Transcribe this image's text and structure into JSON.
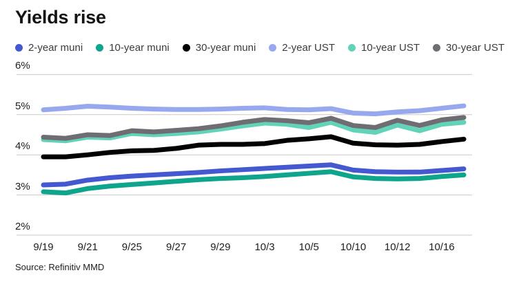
{
  "title": "Yields rise",
  "source": "Source: Refinitiv MMD",
  "chart_data": {
    "type": "line",
    "title": "Yields rise",
    "x": [
      "9/19",
      "9/20",
      "9/21",
      "9/22",
      "9/25",
      "9/26",
      "9/27",
      "9/28",
      "9/29",
      "10/2",
      "10/3",
      "10/4",
      "10/5",
      "10/6",
      "10/10",
      "10/11",
      "10/12",
      "10/13",
      "10/16",
      "10/17"
    ],
    "x_tick_labels": [
      "9/19",
      "9/21",
      "9/25",
      "9/27",
      "9/29",
      "10/3",
      "10/5",
      "10/10",
      "10/12",
      "10/16"
    ],
    "y_ticks": [
      "6%",
      "5%",
      "4%",
      "3%",
      "2%"
    ],
    "ylim": [
      2,
      6
    ],
    "y_unit": "%",
    "grid": "horizontal-only",
    "grid_color": "#c9c9c9",
    "legend_position": "top-left",
    "source": "Source: Refinitiv MMD",
    "series": [
      {
        "name": "2-year muni",
        "color": "#4458d0",
        "values": [
          3.25,
          3.27,
          3.37,
          3.43,
          3.47,
          3.5,
          3.53,
          3.56,
          3.6,
          3.63,
          3.66,
          3.69,
          3.72,
          3.75,
          3.62,
          3.58,
          3.57,
          3.57,
          3.61,
          3.65
        ]
      },
      {
        "name": "10-year muni",
        "color": "#0fa58d",
        "values": [
          3.08,
          3.05,
          3.16,
          3.22,
          3.26,
          3.3,
          3.34,
          3.38,
          3.41,
          3.43,
          3.46,
          3.5,
          3.54,
          3.58,
          3.45,
          3.41,
          3.4,
          3.41,
          3.46,
          3.5
        ]
      },
      {
        "name": "30-year muni",
        "color": "#000000",
        "values": [
          3.95,
          3.95,
          4.0,
          4.06,
          4.1,
          4.11,
          4.16,
          4.24,
          4.26,
          4.26,
          4.28,
          4.36,
          4.4,
          4.45,
          4.29,
          4.25,
          4.24,
          4.26,
          4.33,
          4.39
        ]
      },
      {
        "name": "2-year UST",
        "color": "#98a8ee",
        "values": [
          5.12,
          5.16,
          5.21,
          5.19,
          5.16,
          5.14,
          5.13,
          5.13,
          5.14,
          5.16,
          5.17,
          5.13,
          5.12,
          5.15,
          5.04,
          5.02,
          5.07,
          5.1,
          5.16,
          5.22
        ]
      },
      {
        "name": "10-year UST",
        "color": "#62d3b9",
        "values": [
          4.38,
          4.35,
          4.44,
          4.42,
          4.53,
          4.5,
          4.53,
          4.57,
          4.64,
          4.72,
          4.79,
          4.76,
          4.68,
          4.81,
          4.62,
          4.56,
          4.74,
          4.6,
          4.76,
          4.81
        ]
      },
      {
        "name": "30-year UST",
        "color": "#6d6d72",
        "values": [
          4.44,
          4.41,
          4.5,
          4.48,
          4.6,
          4.57,
          4.61,
          4.65,
          4.72,
          4.81,
          4.88,
          4.85,
          4.8,
          4.91,
          4.73,
          4.68,
          4.86,
          4.73,
          4.87,
          4.93
        ]
      }
    ]
  }
}
